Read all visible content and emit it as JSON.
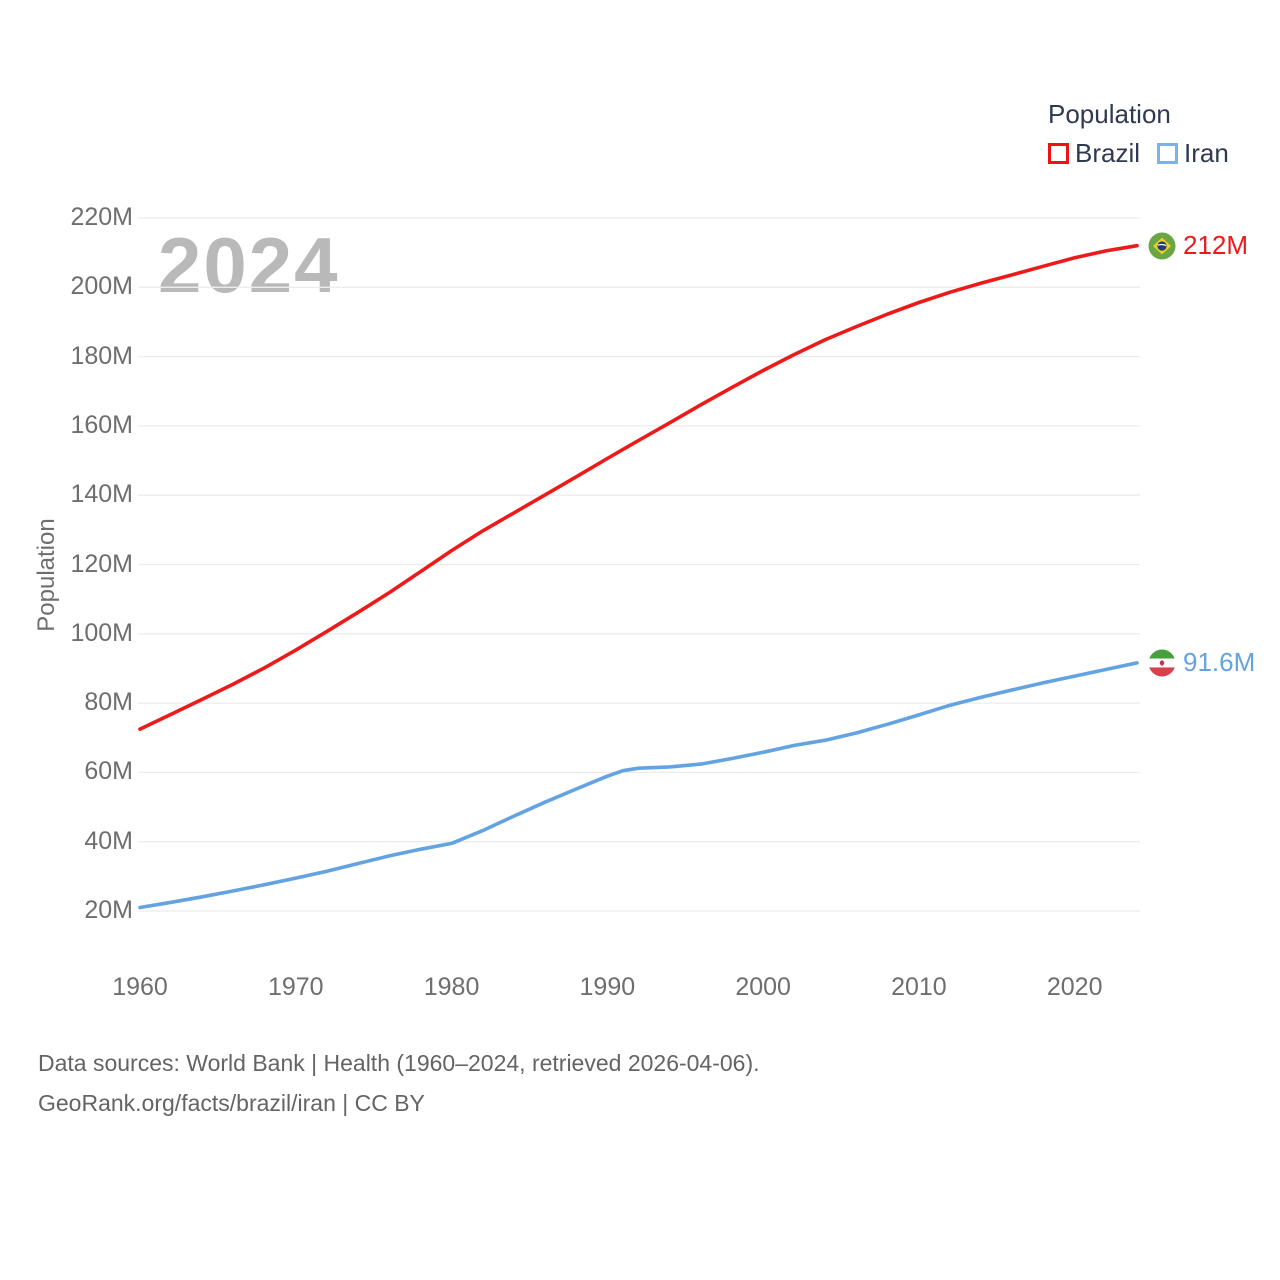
{
  "watermark": "2024",
  "legend": {
    "title": "Population",
    "items": [
      {
        "label": "Brazil",
        "color": "#ee1212"
      },
      {
        "label": "Iran",
        "color": "#7cb2e8"
      }
    ]
  },
  "footer": {
    "line1": "Data sources: World Bank | Health (1960–2024, retrieved 2026-04-06).",
    "line2": "GeoRank.org/facts/brazil/iran | CC BY"
  },
  "chart_data": {
    "type": "line",
    "title": "Population",
    "xlabel": "",
    "ylabel": "Population",
    "xlim": [
      1960,
      2024
    ],
    "ylim": [
      20,
      220
    ],
    "grid": "horizontal",
    "legend_position": "top-right",
    "x_ticks": {
      "values": [
        1960,
        1970,
        1980,
        1990,
        2000,
        2010,
        2020
      ],
      "labels": [
        "1960",
        "1970",
        "1980",
        "1990",
        "2000",
        "2010",
        "2020"
      ]
    },
    "y_ticks": {
      "values": [
        20,
        40,
        60,
        80,
        100,
        120,
        140,
        160,
        180,
        200,
        220
      ],
      "labels": [
        "20M",
        "40M",
        "60M",
        "80M",
        "100M",
        "120M",
        "140M",
        "160M",
        "180M",
        "200M",
        "220M"
      ]
    },
    "series": [
      {
        "id": "brazil",
        "name": "Brazil",
        "color": "#ed1a1a",
        "end_label": "212M",
        "flag": "brazil-flag-icon",
        "unit": "M",
        "points": [
          [
            1960,
            72.5
          ],
          [
            1962,
            76.8
          ],
          [
            1964,
            81.1
          ],
          [
            1966,
            85.5
          ],
          [
            1968,
            90.2
          ],
          [
            1970,
            95.3
          ],
          [
            1972,
            100.7
          ],
          [
            1974,
            106.2
          ],
          [
            1976,
            111.9
          ],
          [
            1978,
            117.9
          ],
          [
            1980,
            124.0
          ],
          [
            1982,
            129.7
          ],
          [
            1984,
            134.9
          ],
          [
            1986,
            140.1
          ],
          [
            1988,
            145.3
          ],
          [
            1990,
            150.6
          ],
          [
            1992,
            155.8
          ],
          [
            1994,
            160.9
          ],
          [
            1996,
            166.1
          ],
          [
            1998,
            171.1
          ],
          [
            2000,
            176.0
          ],
          [
            2002,
            180.6
          ],
          [
            2004,
            184.9
          ],
          [
            2006,
            188.7
          ],
          [
            2008,
            192.3
          ],
          [
            2010,
            195.6
          ],
          [
            2012,
            198.6
          ],
          [
            2014,
            201.2
          ],
          [
            2016,
            203.6
          ],
          [
            2018,
            206.1
          ],
          [
            2020,
            208.5
          ],
          [
            2022,
            210.5
          ],
          [
            2024,
            212.0
          ]
        ]
      },
      {
        "id": "iran",
        "name": "Iran",
        "color": "#63a3e1",
        "end_label": "91.6M",
        "flag": "iran-flag-icon",
        "unit": "M",
        "points": [
          [
            1960,
            21.0
          ],
          [
            1962,
            22.5
          ],
          [
            1964,
            24.1
          ],
          [
            1966,
            25.8
          ],
          [
            1968,
            27.6
          ],
          [
            1970,
            29.5
          ],
          [
            1972,
            31.5
          ],
          [
            1974,
            33.7
          ],
          [
            1976,
            35.9
          ],
          [
            1978,
            37.8
          ],
          [
            1980,
            39.5
          ],
          [
            1982,
            43.2
          ],
          [
            1984,
            47.4
          ],
          [
            1986,
            51.4
          ],
          [
            1988,
            55.2
          ],
          [
            1990,
            58.9
          ],
          [
            1991,
            60.5
          ],
          [
            1992,
            61.2
          ],
          [
            1994,
            61.6
          ],
          [
            1996,
            62.4
          ],
          [
            1998,
            64.0
          ],
          [
            2000,
            65.8
          ],
          [
            2002,
            67.8
          ],
          [
            2004,
            69.3
          ],
          [
            2006,
            71.4
          ],
          [
            2008,
            73.9
          ],
          [
            2010,
            76.6
          ],
          [
            2012,
            79.4
          ],
          [
            2014,
            81.7
          ],
          [
            2016,
            83.8
          ],
          [
            2018,
            85.9
          ],
          [
            2020,
            87.8
          ],
          [
            2022,
            89.7
          ],
          [
            2024,
            91.6
          ]
        ]
      }
    ]
  }
}
